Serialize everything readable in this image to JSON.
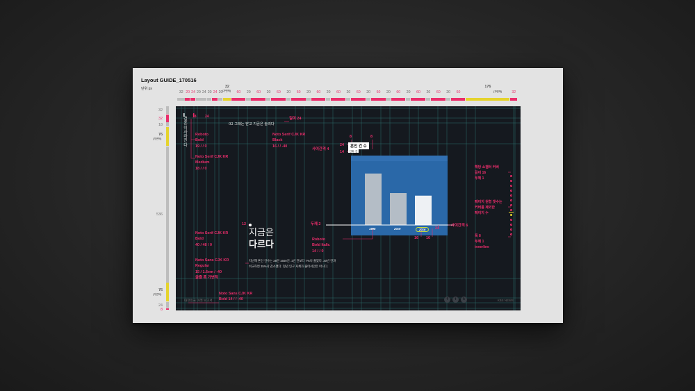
{
  "guide": {
    "title": "Layout GUIDE_170516",
    "unit": "단위 px",
    "variable_label": "(가변적)"
  },
  "top_ruler": [
    {
      "label": "32",
      "tone": "gray"
    },
    {
      "label": "20",
      "tone": "pink"
    },
    {
      "label": "24",
      "tone": "pink"
    },
    {
      "label": "20",
      "tone": "gray"
    },
    {
      "label": "24",
      "tone": "gray"
    },
    {
      "label": "20",
      "tone": "gray"
    },
    {
      "label": "24",
      "tone": "pink"
    },
    {
      "label": "20",
      "tone": "gray"
    },
    {
      "label": "32",
      "tone": "black",
      "sub": "(가변적)"
    },
    {
      "label": "60",
      "tone": "pink"
    },
    {
      "label": "20",
      "tone": "gray"
    },
    {
      "label": "60",
      "tone": "pink"
    },
    {
      "label": "20",
      "tone": "gray"
    },
    {
      "label": "60",
      "tone": "pink"
    },
    {
      "label": "20",
      "tone": "gray"
    },
    {
      "label": "60",
      "tone": "pink"
    },
    {
      "label": "20",
      "tone": "gray"
    },
    {
      "label": "60",
      "tone": "pink"
    },
    {
      "label": "20",
      "tone": "gray"
    },
    {
      "label": "60",
      "tone": "pink"
    },
    {
      "label": "20",
      "tone": "gray"
    },
    {
      "label": "60",
      "tone": "pink"
    },
    {
      "label": "20",
      "tone": "gray"
    },
    {
      "label": "60",
      "tone": "pink"
    },
    {
      "label": "20",
      "tone": "gray"
    },
    {
      "label": "60",
      "tone": "pink"
    },
    {
      "label": "20",
      "tone": "gray"
    },
    {
      "label": "60",
      "tone": "pink"
    },
    {
      "label": "20",
      "tone": "gray"
    },
    {
      "label": "60",
      "tone": "pink"
    },
    {
      "label": "20",
      "tone": "gray"
    },
    {
      "label": "60",
      "tone": "pink"
    },
    {
      "label": "176",
      "tone": "black",
      "sub": "(가변적)"
    },
    {
      "label": "32",
      "tone": "pink"
    }
  ],
  "left_ruler": [
    {
      "label": "32",
      "tone": "gray"
    },
    {
      "label": "32",
      "tone": "pink"
    },
    {
      "label": "18",
      "tone": "gray"
    },
    {
      "label": "76",
      "tone": "black",
      "sub": "(가변적)"
    },
    {
      "label": "536",
      "tone": "gray"
    },
    {
      "label": "76",
      "tone": "black",
      "sub": "(가변적)"
    },
    {
      "label": "24",
      "tone": "gray"
    },
    {
      "label": "8",
      "tone": "pink"
    }
  ],
  "spec": {
    "small_marks": [
      "18",
      "24"
    ],
    "section_sample": "02 그래는 받고 지금은 놀리다",
    "height_24": "길이 24",
    "vertical_text": "결혼이사라진다",
    "roboto_bold": [
      "Roboto",
      "Bold",
      "19 / / 0"
    ],
    "serif_medium": [
      "Noto Serif CJK KR",
      "Medium",
      "18 / / 0"
    ],
    "serif_black": [
      "Noto Serif CJK KR",
      "Black",
      "16 / / -40"
    ],
    "gap_4": "사이간격 4",
    "dim_24": "24",
    "dim_14": "14",
    "dim_8a": "8",
    "dim_8b": "8",
    "chart_title": "혼인 건 수",
    "chart_unit": "단위: 건",
    "marker_12": "12",
    "thickness_2": "두께 2",
    "gap_6": "사이간격 6",
    "dim_16a": "16",
    "dim_16b": "16",
    "dim_24b": "24",
    "serif_bold": [
      "Noto Serif CJK KR",
      "Bold",
      "40 / 48 / 0"
    ],
    "sans_regular": [
      "Noto Sans CJK KR",
      "Regular",
      "15 / 1.6em / -40",
      "글줄 폭 가변적"
    ],
    "roboto_bold_italic": [
      "Roboto",
      "Bold Italic",
      "14 / / 0"
    ],
    "sans_bold": [
      "Noto Sans CJK KR",
      "Bold  14 / / -40"
    ],
    "pager_note_1": [
      "해당 소챕터 커버",
      "길이 16",
      "두께 1"
    ],
    "pager_note_2": [
      "페이지 원형 갯수는",
      "커버를 제외한",
      "페이지 수"
    ],
    "pager_note_3": [
      "폭 8",
      "두께 1",
      "innerline"
    ]
  },
  "content": {
    "headline_line1": "지금은",
    "headline_line2": "다르다",
    "body": "지난해 혼인 건수는 28만 1600건. 1년 전보다 7%나 줄었다. 20년 전과 비교하면 35%나 감소했다. 청년 인구 자체가 줄어서만은 아니다.",
    "footer": "대한민국 미래 보고서",
    "brand": "KBS NEWS",
    "social_icons": [
      "f",
      "t",
      "k"
    ]
  },
  "colors": {
    "accent": "#ea2d6b",
    "highlight": "#e5d32d",
    "canvas": "#15191f",
    "chart_bg": "#2a68a8",
    "bar": "#b4bdc6"
  },
  "chart_data": {
    "type": "bar",
    "title": "혼인 건 수",
    "unit": "단위: 건",
    "categories": [
      "1996",
      "2019",
      "2016"
    ],
    "values": [
      100,
      62,
      57
    ],
    "highlight": "2016",
    "ylim": [
      0,
      120
    ],
    "grid": false
  }
}
